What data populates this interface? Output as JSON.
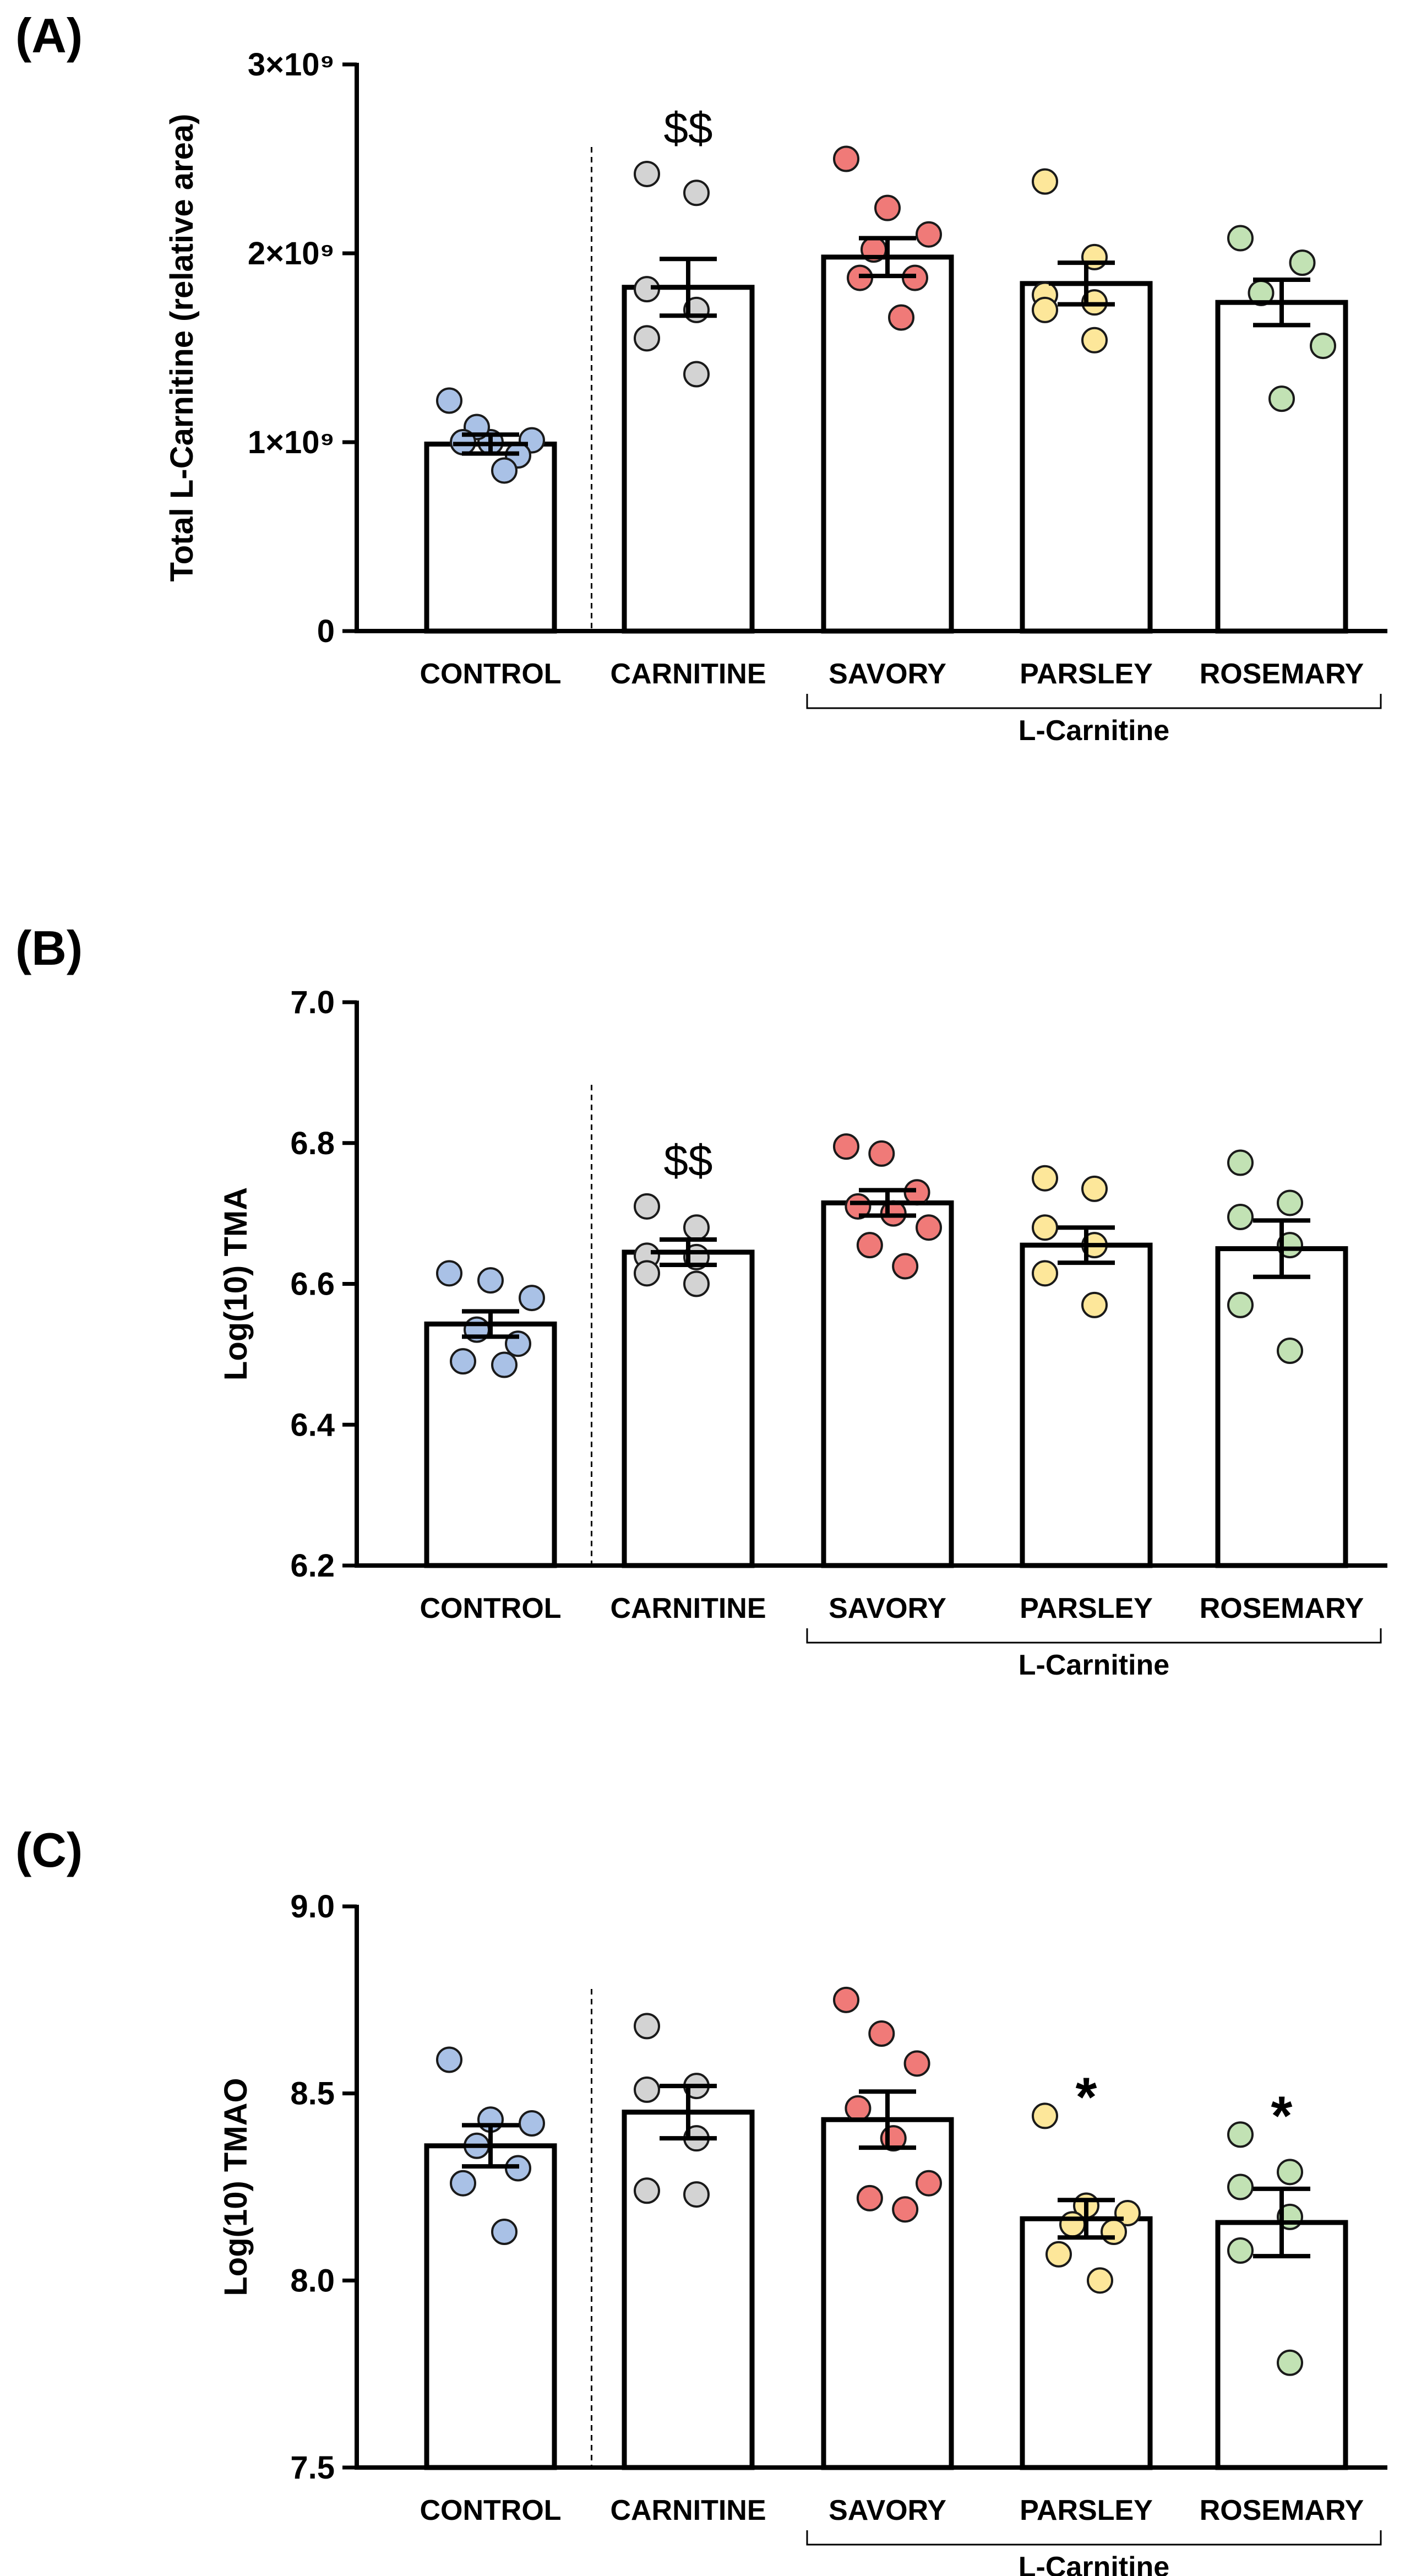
{
  "chart_data": [
    {
      "type": "bar",
      "panel_label": "(A)",
      "ylabel": "Total L-Carnitine (relative area)",
      "ylim": [
        0,
        3000000000
      ],
      "yticks": [
        0,
        1000000000,
        2000000000,
        3000000000
      ],
      "ytick_labels": [
        "0",
        "1×10⁹",
        "2×10⁹",
        "3×10⁹"
      ],
      "categories": [
        "CONTROL",
        "CARNITINE",
        "SAVORY",
        "PARSLEY",
        "ROSEMARY"
      ],
      "bracket_label": "L-Carnitine",
      "separator_after_category": 0,
      "colors": [
        "#a9c1e6",
        "#d3d3d3",
        "#f07a78",
        "#fde79a",
        "#c2e2b4"
      ],
      "means": [
        990000000,
        1820000000,
        1980000000,
        1840000000,
        1740000000
      ],
      "sem": [
        50000000,
        150000000,
        100000000,
        110000000,
        120000000
      ],
      "points": [
        [
          1220000000,
          1000000000,
          1010000000,
          1080000000,
          930000000,
          1000000000,
          850000000
        ],
        [
          2420000000,
          2320000000,
          1810000000,
          1700000000,
          1550000000,
          1360000000
        ],
        [
          2500000000,
          2240000000,
          2100000000,
          2020000000,
          1870000000,
          1870000000,
          1660000000
        ],
        [
          2380000000,
          1980000000,
          1780000000,
          1740000000,
          1700000000,
          1540000000
        ],
        [
          2080000000,
          1950000000,
          1790000000,
          1510000000,
          1230000000
        ]
      ],
      "annotations": [
        "",
        "$$",
        "",
        "",
        ""
      ]
    },
    {
      "type": "bar",
      "panel_label": "(B)",
      "ylabel": "Log(10) TMA",
      "ylim": [
        6.2,
        7.0
      ],
      "yticks": [
        6.2,
        6.4,
        6.6,
        6.8,
        7.0
      ],
      "ytick_labels": [
        "6.2",
        "6.4",
        "6.6",
        "6.8",
        "7.0"
      ],
      "categories": [
        "CONTROL",
        "CARNITINE",
        "SAVORY",
        "PARSLEY",
        "ROSEMARY"
      ],
      "bracket_label": "L-Carnitine",
      "separator_after_category": 0,
      "colors": [
        "#a9c1e6",
        "#d3d3d3",
        "#f07a78",
        "#fde79a",
        "#c2e2b4"
      ],
      "means": [
        6.543,
        6.645,
        6.715,
        6.655,
        6.65
      ],
      "sem": [
        0.018,
        0.018,
        0.018,
        0.025,
        0.04
      ],
      "points": [
        [
          6.615,
          6.605,
          6.58,
          6.535,
          6.515,
          6.49,
          6.485
        ],
        [
          6.71,
          6.68,
          6.64,
          6.638,
          6.615,
          6.6
        ],
        [
          6.795,
          6.785,
          6.73,
          6.71,
          6.7,
          6.68,
          6.655,
          6.625
        ],
        [
          6.75,
          6.735,
          6.68,
          6.655,
          6.615,
          6.57
        ],
        [
          6.772,
          6.715,
          6.695,
          6.655,
          6.57,
          6.505
        ]
      ],
      "annotations": [
        "",
        "$$",
        "",
        "",
        ""
      ]
    },
    {
      "type": "bar",
      "panel_label": "(C)",
      "ylabel": "Log(10) TMAO",
      "ylim": [
        7.5,
        9.0
      ],
      "yticks": [
        7.5,
        8.0,
        8.5,
        9.0
      ],
      "ytick_labels": [
        "7.5",
        "8.0",
        "8.5",
        "9.0"
      ],
      "categories": [
        "CONTROL",
        "CARNITINE",
        "SAVORY",
        "PARSLEY",
        "ROSEMARY"
      ],
      "bracket_label": "L-Carnitine",
      "separator_after_category": 0,
      "colors": [
        "#a9c1e6",
        "#d3d3d3",
        "#f07a78",
        "#fde79a",
        "#c2e2b4"
      ],
      "means": [
        8.36,
        8.45,
        8.43,
        8.165,
        8.155
      ],
      "sem": [
        0.055,
        0.07,
        0.075,
        0.05,
        0.09
      ],
      "points": [
        [
          8.59,
          8.43,
          8.42,
          8.36,
          8.3,
          8.26,
          8.13
        ],
        [
          8.68,
          8.52,
          8.51,
          8.38,
          8.24,
          8.23
        ],
        [
          8.75,
          8.66,
          8.58,
          8.46,
          8.38,
          8.26,
          8.22,
          8.19
        ],
        [
          8.44,
          8.2,
          8.18,
          8.15,
          8.13,
          8.07,
          8.0
        ],
        [
          8.39,
          8.29,
          8.25,
          8.17,
          8.08,
          7.78
        ]
      ],
      "annotations": [
        "",
        "",
        "",
        "*",
        "*"
      ]
    }
  ]
}
